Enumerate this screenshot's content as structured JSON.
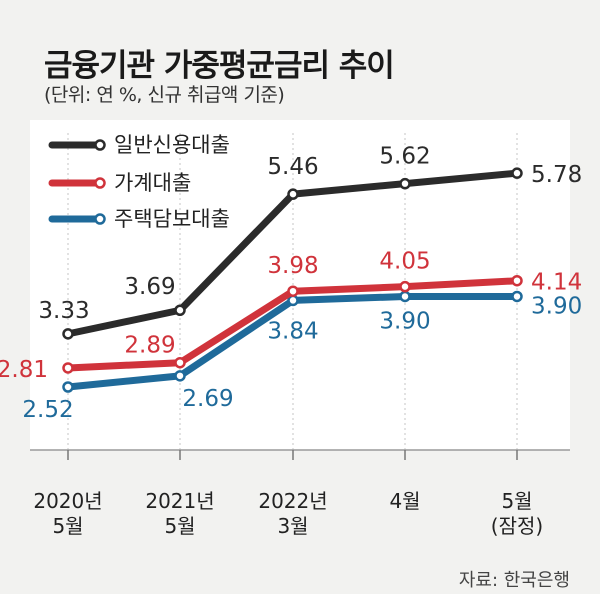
{
  "header": {
    "title": "금융기관 가중평균금리 추이",
    "subtitle": "(단위: 연 %, 신규 취급액 기준)",
    "source": "자료: 한국은행"
  },
  "chart_data": {
    "type": "line",
    "title": "금융기관 가중평균금리 추이",
    "subtitle": "(단위: 연 %, 신규 취급액 기준)",
    "x": [
      [
        "2020년",
        "5월"
      ],
      [
        "2021년",
        "5월"
      ],
      [
        "2022년",
        "3월"
      ],
      [
        "4월"
      ],
      [
        "5월",
        "(잠정)"
      ]
    ],
    "series": [
      {
        "name": "일반신용대출",
        "color": "#2b2b2b",
        "values": [
          3.33,
          3.69,
          5.46,
          5.62,
          5.78
        ],
        "labels": [
          "3.33",
          "3.69",
          "5.46",
          "5.62",
          "5.78"
        ]
      },
      {
        "name": "가계대출",
        "color": "#d0333b",
        "values": [
          2.81,
          2.89,
          3.98,
          4.05,
          4.14
        ],
        "labels": [
          "2.81",
          "2.89",
          "3.98",
          "4.05",
          "4.14"
        ]
      },
      {
        "name": "주택담보대출",
        "color": "#1f6a9a",
        "values": [
          2.52,
          2.69,
          3.84,
          3.9,
          3.9
        ],
        "labels": [
          "2.52",
          "2.69",
          "3.84",
          "3.90",
          "3.90"
        ]
      }
    ],
    "legend": "top-left",
    "source": "자료: 한국은행"
  }
}
